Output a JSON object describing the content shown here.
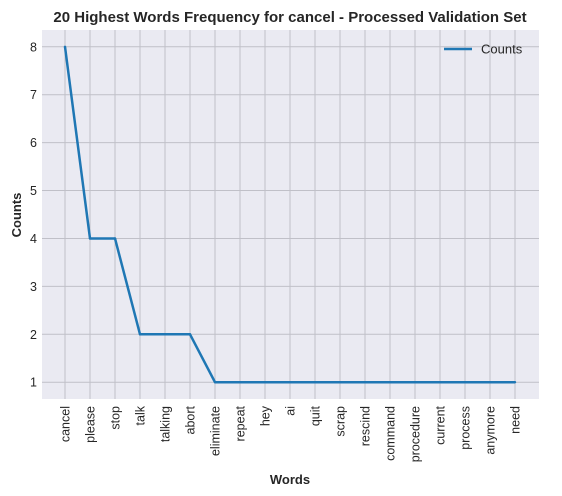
{
  "chart_data": {
    "type": "line",
    "title": "20 Highest Words Frequency for cancel - Processed Validation Set",
    "xlabel": "Words",
    "ylabel": "Counts",
    "categories": [
      "cancel",
      "please",
      "stop",
      "talk",
      "talking",
      "abort",
      "eliminate",
      "repeat",
      "hey",
      "ai",
      "quit",
      "scrap",
      "rescind",
      "command",
      "procedure",
      "current",
      "process",
      "anymore",
      "need"
    ],
    "series": [
      {
        "name": "Counts",
        "values": [
          8,
          4,
          4,
          2,
          2,
          2,
          1,
          1,
          1,
          1,
          1,
          1,
          1,
          1,
          1,
          1,
          1,
          1,
          1
        ]
      }
    ],
    "yticks": [
      1,
      2,
      3,
      4,
      5,
      6,
      7,
      8
    ],
    "ylim": [
      0.65,
      8.35
    ],
    "grid": true,
    "legend": "top-right",
    "colors": {
      "line": "#1f77b4",
      "background": "#eaeaf2",
      "grid": "#c0c0c8"
    }
  }
}
